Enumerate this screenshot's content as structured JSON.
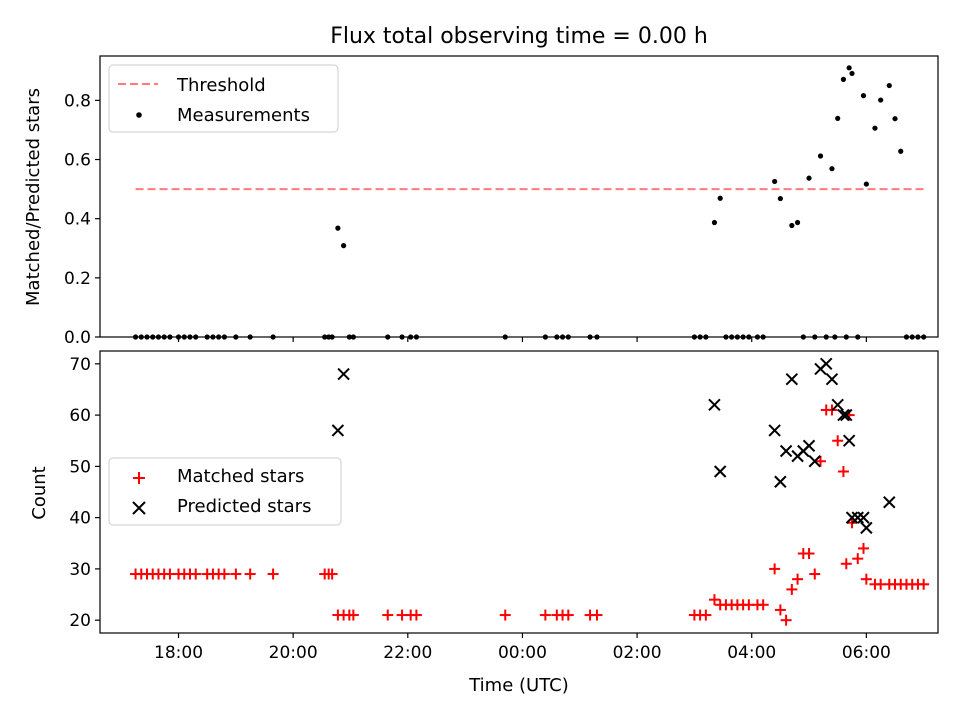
{
  "figure": {
    "title": "Flux total observing time = 0.00 h"
  },
  "chart_data": [
    {
      "type": "scatter",
      "panel": "top",
      "ylabel": "Matched/Predicted stars",
      "xlabel": "",
      "ylim": [
        0.0,
        0.95
      ],
      "xlim": [
        16.63,
        31.25
      ],
      "x_unit": "hours UTC (values > 24 are the next day)",
      "yticks": [
        0.0,
        0.2,
        0.4,
        0.6,
        0.8
      ],
      "ytick_labels": [
        "0.0",
        "0.2",
        "0.4",
        "0.6",
        "0.8"
      ],
      "legend": {
        "placement": "top-left",
        "entries": [
          "Threshold",
          "Measurements"
        ]
      },
      "colors": {
        "threshold": "#ff7b7b",
        "measurements": "#000000"
      },
      "threshold": {
        "name": "Threshold",
        "y": 0.5,
        "x": [
          17.25,
          31.0
        ]
      },
      "series": [
        {
          "name": "Measurements",
          "x": [
            17.25,
            17.35,
            17.45,
            17.55,
            17.65,
            17.75,
            17.85,
            18.0,
            18.1,
            18.2,
            18.3,
            18.5,
            18.6,
            18.7,
            18.8,
            19.0,
            19.25,
            19.65,
            20.55,
            20.62,
            20.68,
            20.78,
            20.88,
            20.98,
            21.05,
            21.65,
            21.9,
            22.05,
            22.15,
            23.7,
            24.4,
            24.6,
            24.7,
            24.8,
            25.18,
            25.3,
            27.0,
            27.1,
            27.2,
            27.35,
            27.45,
            27.55,
            27.65,
            27.75,
            27.85,
            27.95,
            28.1,
            28.2,
            28.4,
            28.5,
            28.7,
            28.8,
            28.9,
            29.0,
            29.1,
            29.2,
            29.3,
            29.4,
            29.45,
            29.5,
            29.6,
            29.65,
            29.7,
            29.75,
            29.85,
            29.95,
            30.0,
            30.15,
            30.25,
            30.4,
            30.5,
            30.6,
            30.7,
            30.8,
            30.9,
            31.0
          ],
          "y": [
            0.0,
            0.0,
            0.0,
            0.0,
            0.0,
            0.0,
            0.0,
            0.0,
            0.0,
            0.0,
            0.0,
            0.0,
            0.0,
            0.0,
            0.0,
            0.0,
            0.0,
            0.0,
            0.0,
            0.0,
            0.0,
            0.368,
            0.309,
            0.0,
            0.0,
            0.0,
            0.0,
            0.0,
            0.0,
            0.0,
            0.0,
            0.0,
            0.0,
            0.0,
            0.0,
            0.0,
            0.0,
            0.0,
            0.0,
            0.387,
            0.469,
            0.0,
            0.0,
            0.0,
            0.0,
            0.0,
            0.0,
            0.0,
            0.526,
            0.468,
            0.377,
            0.387,
            0.0,
            0.537,
            0.0,
            0.612,
            0.0,
            0.569,
            0.0,
            0.739,
            0.871,
            0.0,
            0.91,
            0.891,
            0.0,
            0.816,
            0.517,
            0.706,
            0.801,
            0.85,
            0.738,
            0.628,
            0.0,
            0.0,
            0.0,
            0.0
          ]
        }
      ]
    },
    {
      "type": "scatter",
      "panel": "bottom",
      "ylabel": "Count",
      "xlabel": "Time (UTC)",
      "ylim": [
        17.5,
        72.5
      ],
      "xlim": [
        16.63,
        31.25
      ],
      "yticks": [
        20,
        30,
        40,
        50,
        60,
        70
      ],
      "ytick_labels": [
        "20",
        "30",
        "40",
        "50",
        "60",
        "70"
      ],
      "xticks": [
        18,
        20,
        22,
        24,
        26,
        28,
        30
      ],
      "xtick_labels": [
        "18:00",
        "20:00",
        "22:00",
        "00:00",
        "02:00",
        "04:00",
        "06:00"
      ],
      "legend": {
        "placement": "center-left",
        "entries": [
          "Matched stars",
          "Predicted stars"
        ]
      },
      "colors": {
        "matched": "#ff0000",
        "predicted": "#000000"
      },
      "series": [
        {
          "name": "Matched stars",
          "marker": "plus",
          "x": [
            17.25,
            17.35,
            17.45,
            17.55,
            17.65,
            17.75,
            17.85,
            18.0,
            18.1,
            18.2,
            18.3,
            18.5,
            18.6,
            18.7,
            18.8,
            19.0,
            19.25,
            19.65,
            20.55,
            20.62,
            20.68,
            20.78,
            20.88,
            20.98,
            21.05,
            21.65,
            21.9,
            22.05,
            22.15,
            23.7,
            24.4,
            24.6,
            24.7,
            24.8,
            25.18,
            25.3,
            27.0,
            27.1,
            27.2,
            27.35,
            27.45,
            27.55,
            27.65,
            27.75,
            27.85,
            27.95,
            28.1,
            28.2,
            28.4,
            28.5,
            28.6,
            28.7,
            28.8,
            28.9,
            29.0,
            29.1,
            29.2,
            29.3,
            29.4,
            29.5,
            29.6,
            29.65,
            29.7,
            29.75,
            29.85,
            29.95,
            30.0,
            30.15,
            30.25,
            30.4,
            30.5,
            30.6,
            30.7,
            30.8,
            30.9,
            31.0
          ],
          "values": [
            29,
            29,
            29,
            29,
            29,
            29,
            29,
            29,
            29,
            29,
            29,
            29,
            29,
            29,
            29,
            29,
            29,
            29,
            29,
            29,
            29,
            21,
            21,
            21,
            21,
            21,
            21,
            21,
            21,
            21,
            21,
            21,
            21,
            21,
            21,
            21,
            21,
            21,
            21,
            24,
            23,
            23,
            23,
            23,
            23,
            23,
            23,
            23,
            30,
            22,
            20,
            26,
            28,
            33,
            33,
            29,
            51,
            61,
            61,
            55,
            49,
            31,
            60,
            39,
            32,
            34,
            28,
            27,
            27,
            27,
            27,
            27,
            27,
            27,
            27,
            27
          ]
        },
        {
          "name": "Predicted stars",
          "marker": "x",
          "x": [
            20.78,
            20.88,
            27.35,
            27.45,
            28.4,
            28.5,
            28.6,
            28.7,
            28.8,
            28.9,
            29.0,
            29.1,
            29.2,
            29.3,
            29.4,
            29.5,
            29.6,
            29.65,
            29.7,
            29.75,
            29.85,
            29.95,
            30.0,
            30.4
          ],
          "values": [
            57,
            68,
            62,
            49,
            57,
            47,
            53,
            67,
            52,
            53,
            54,
            51,
            69,
            70,
            67,
            62,
            60,
            60,
            55,
            40,
            40,
            40,
            38,
            43
          ]
        }
      ]
    }
  ]
}
